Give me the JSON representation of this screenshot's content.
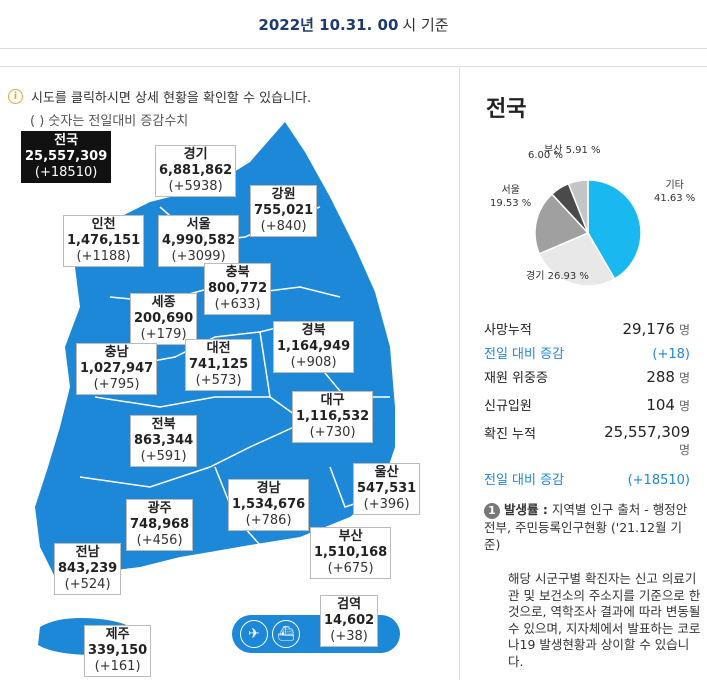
{
  "header": {
    "date": "2022년 10.31. 00",
    "suffix": "시 기준"
  },
  "notice": {
    "text": "시도를 클릭하시면 상세 현황을 확인할 수 있습니다.",
    "sub": "( ) 숫자는 전일대비 증감수치"
  },
  "regions": [
    {
      "id": "nation",
      "name": "전국",
      "value": "25,557,309",
      "diff": "(+18510)"
    },
    {
      "id": "gyeonggi",
      "name": "경기",
      "value": "6,881,862",
      "diff": "(+5938)"
    },
    {
      "id": "gangwon",
      "name": "강원",
      "value": "755,021",
      "diff": "(+840)"
    },
    {
      "id": "incheon",
      "name": "인천",
      "value": "1,476,151",
      "diff": "(+1188)"
    },
    {
      "id": "seoul",
      "name": "서울",
      "value": "4,990,582",
      "diff": "(+3099)"
    },
    {
      "id": "chungbuk",
      "name": "충북",
      "value": "800,772",
      "diff": "(+633)"
    },
    {
      "id": "sejong",
      "name": "세종",
      "value": "200,690",
      "diff": "(+179)"
    },
    {
      "id": "chungnam",
      "name": "충남",
      "value": "1,027,947",
      "diff": "(+795)"
    },
    {
      "id": "daejeon",
      "name": "대전",
      "value": "741,125",
      "diff": "(+573)"
    },
    {
      "id": "gyeongbuk",
      "name": "경북",
      "value": "1,164,949",
      "diff": "(+908)"
    },
    {
      "id": "daegu",
      "name": "대구",
      "value": "1,116,532",
      "diff": "(+730)"
    },
    {
      "id": "jeonbuk",
      "name": "전북",
      "value": "863,344",
      "diff": "(+591)"
    },
    {
      "id": "ulsan",
      "name": "울산",
      "value": "547,531",
      "diff": "(+396)"
    },
    {
      "id": "gyeongnam",
      "name": "경남",
      "value": "1,534,676",
      "diff": "(+786)"
    },
    {
      "id": "gwangju",
      "name": "광주",
      "value": "748,968",
      "diff": "(+456)"
    },
    {
      "id": "busan",
      "name": "부산",
      "value": "1,510,168",
      "diff": "(+675)"
    },
    {
      "id": "jeonnam",
      "name": "전남",
      "value": "843,239",
      "diff": "(+524)"
    },
    {
      "id": "quarantine",
      "name": "검역",
      "value": "14,602",
      "diff": "(+38)"
    },
    {
      "id": "jeju",
      "name": "제주",
      "value": "339,150",
      "diff": "(+161)"
    }
  ],
  "airport_icons": [
    "airplane-icon",
    "ship-icon"
  ],
  "panel": {
    "title": "전국",
    "pie_labels": [
      {
        "name": "기타",
        "pct": "41.63 %"
      },
      {
        "name": "경기",
        "pct": "26.93 %"
      },
      {
        "name": "서울",
        "pct": "19.53 %"
      },
      {
        "name": "부산",
        "pct": "5.91 %"
      },
      {
        "name": "",
        "pct": "6.00 %"
      }
    ],
    "stats": [
      {
        "label": "사망누적",
        "value": "29,176",
        "unit": "명"
      },
      {
        "label": "전일 대비 증감",
        "value": "(+18)",
        "unit": ""
      },
      {
        "label": "재원 위중증",
        "value": "288",
        "unit": "명"
      },
      {
        "label": "신규입원",
        "value": "104",
        "unit": "명"
      },
      {
        "label": "확진 누적",
        "value": "25,557,309",
        "unit": "명"
      },
      {
        "label": "전일 대비 증감",
        "value": "(+18510)",
        "unit": ""
      }
    ],
    "footnote_num": "1",
    "footnote_title": "발생률 :",
    "footnote_text": " 지역별 인구 출처 - 행정안전부, 주민등록인구현황 ('21.12월 기준)",
    "description": "해당 시군구별 확진자는 신고 의료기관 및 보건소의 주소지를 기준으로 한 것으로, 역학조사 결과에 따라 변동될 수 있으며, 지자체에서 발표하는 코로나19 발생현황과 상이할 수 있습니다."
  },
  "colors": {
    "map": "#1e88d8",
    "accent": "#1e88d8",
    "pie_gitan": "#1ab8f0",
    "pie_gyeonggi": "#e8e8e8",
    "pie_seoul": "#a0a0a0",
    "pie_busan": "#4a4a4a",
    "pie_other": "#c4c4c4"
  },
  "chart_data": {
    "type": "pie",
    "categories": [
      "기타",
      "경기",
      "서울",
      "부산",
      ""
    ],
    "values": [
      41.63,
      26.93,
      19.53,
      5.91,
      6.0
    ]
  }
}
